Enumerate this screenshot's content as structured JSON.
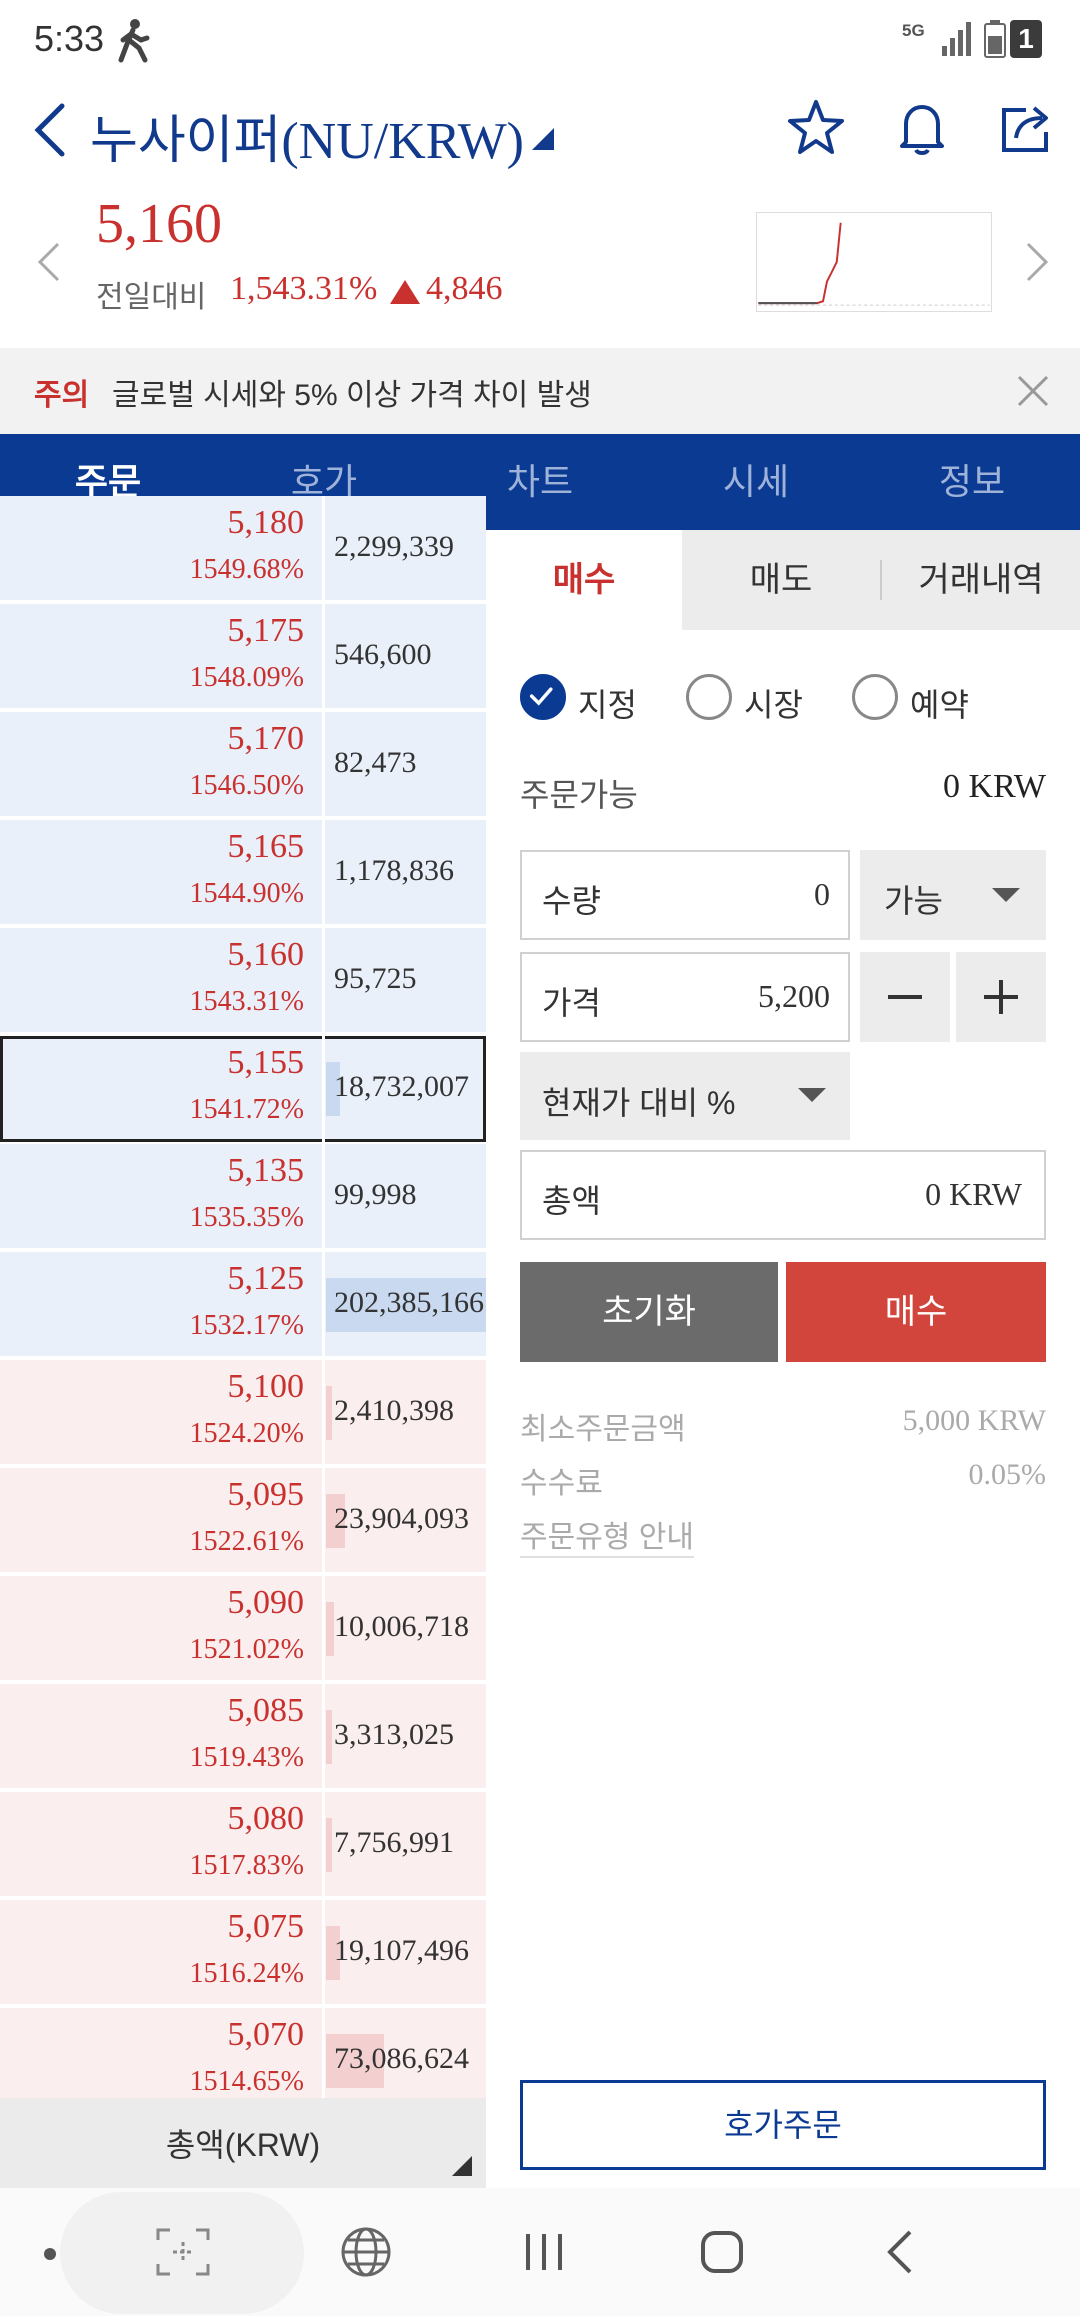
{
  "status_bar": {
    "time": "5:33",
    "network": "5G",
    "sim": "1"
  },
  "header": {
    "title": "누사이퍼(NU/KRW)",
    "icons": [
      "back-icon",
      "star-icon",
      "bell-icon",
      "share-icon"
    ]
  },
  "price": {
    "current": "5,160",
    "change_label": "전일대비",
    "change_percent": "1,543.31%",
    "change_amount": "4,846"
  },
  "notice": {
    "tag": "주의",
    "text": "글로벌 시세와 5% 이상 가격 차이 발생"
  },
  "tabs": [
    {
      "label": "주문"
    },
    {
      "label": "호가"
    },
    {
      "label": "차트"
    },
    {
      "label": "시세"
    },
    {
      "label": "정보"
    }
  ],
  "orderbook": {
    "rows": [
      {
        "price": "5,180",
        "pct": "1549.68%",
        "qty": "2,299,339",
        "side": "ask",
        "bar": 0
      },
      {
        "price": "5,175",
        "pct": "1548.09%",
        "qty": "546,600",
        "side": "ask",
        "bar": 0
      },
      {
        "price": "5,170",
        "pct": "1546.50%",
        "qty": "82,473",
        "side": "ask",
        "bar": 0
      },
      {
        "price": "5,165",
        "pct": "1544.90%",
        "qty": "1,178,836",
        "side": "ask",
        "bar": 0
      },
      {
        "price": "5,160",
        "pct": "1543.31%",
        "qty": "95,725",
        "side": "ask",
        "bar": 0
      },
      {
        "price": "5,155",
        "pct": "1541.72%",
        "qty": "18,732,007",
        "side": "ask",
        "bar": 0.09
      },
      {
        "price": "5,135",
        "pct": "1535.35%",
        "qty": "99,998",
        "side": "ask",
        "bar": 0
      },
      {
        "price": "5,125",
        "pct": "1532.17%",
        "qty": "202,385,166",
        "side": "ask",
        "bar": 1.0
      },
      {
        "price": "5,100",
        "pct": "1524.20%",
        "qty": "2,410,398",
        "side": "bid",
        "bar": 0.01
      },
      {
        "price": "5,095",
        "pct": "1522.61%",
        "qty": "23,904,093",
        "side": "bid",
        "bar": 0.12
      },
      {
        "price": "5,090",
        "pct": "1521.02%",
        "qty": "10,006,718",
        "side": "bid",
        "bar": 0.05
      },
      {
        "price": "5,085",
        "pct": "1519.43%",
        "qty": "3,313,025",
        "side": "bid",
        "bar": 0.02
      },
      {
        "price": "5,080",
        "pct": "1517.83%",
        "qty": "7,756,991",
        "side": "bid",
        "bar": 0.04
      },
      {
        "price": "5,075",
        "pct": "1516.24%",
        "qty": "19,107,496",
        "side": "bid",
        "bar": 0.09
      },
      {
        "price": "5,070",
        "pct": "1514.65%",
        "qty": "73,086,624",
        "side": "bid",
        "bar": 0.36
      }
    ],
    "total_label": "총액(KRW)"
  },
  "order_panel": {
    "side_tabs": {
      "buy": "매수",
      "sell": "매도",
      "history": "거래내역"
    },
    "order_types": [
      {
        "label": "지정",
        "checked": true
      },
      {
        "label": "시장",
        "checked": false
      },
      {
        "label": "예약",
        "checked": false
      }
    ],
    "available_label": "주문가능",
    "available_value": "0 KRW",
    "quantity_label": "수량",
    "quantity_value": "0",
    "quantity_select": "가능",
    "price_label": "가격",
    "price_value": "5,200",
    "percent_select": "현재가 대비 %",
    "total_label": "총액",
    "total_value": "0 KRW",
    "reset_label": "초기화",
    "buy_label": "매수",
    "min_order_label": "최소주문금액",
    "min_order_value": "5,000 KRW",
    "fee_label": "수수료",
    "fee_value": "0.05%",
    "order_guide_label": "주문유형 안내",
    "orderbook_order_label": "호가주문"
  },
  "colors": {
    "brand_blue": "#0b3a93",
    "red": "#c8312e",
    "buy_button": "#d2453d"
  }
}
